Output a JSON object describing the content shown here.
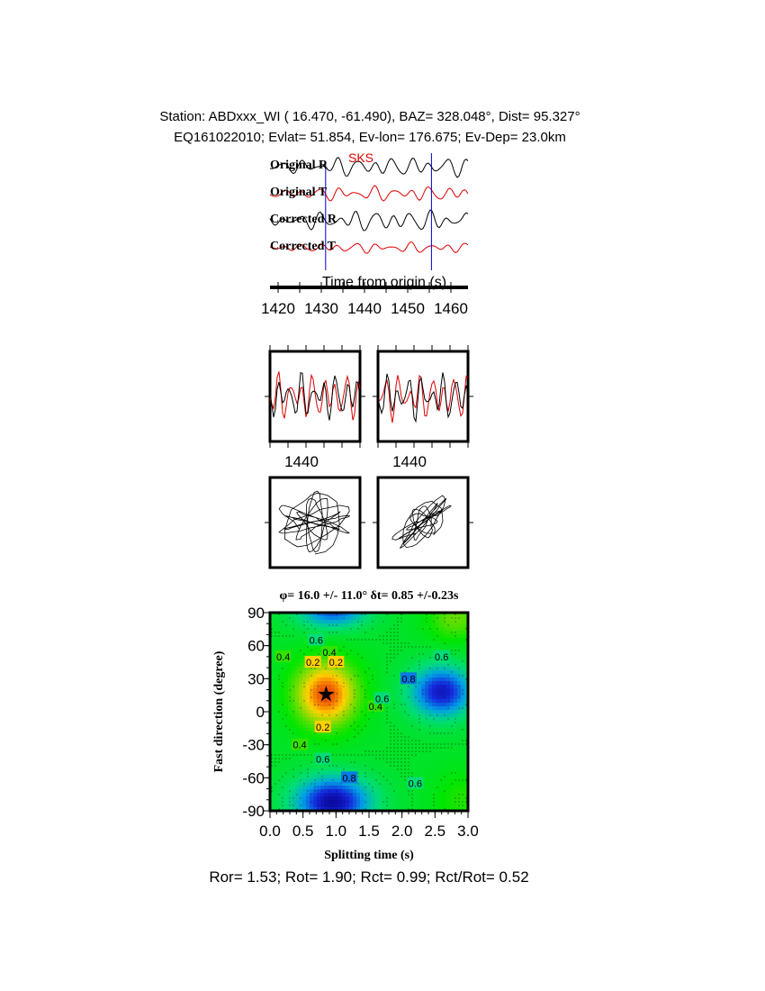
{
  "header": {
    "line1": "Station: ABDxxx_WI (  16.470,  -61.490), BAZ=  328.048°, Dist=   95.327°",
    "line2": "EQ161022010; Evlat=  51.854, Ev-lon= 176.675; Ev-Dep= 23.0km"
  },
  "chart_data": [
    {
      "type": "line",
      "title": "",
      "phase_label": "SKS",
      "series": [
        {
          "name": "Original R"
        },
        {
          "name": "Original T"
        },
        {
          "name": "Corrected R"
        },
        {
          "name": "Corrected T"
        }
      ],
      "window_markers": [
        1431,
        1455.5
      ],
      "xlabel": "Time from origin (s)",
      "xticks": [
        "1420",
        "1430",
        "1440",
        "1450",
        "1460"
      ],
      "xlim": [
        1418,
        1462
      ],
      "colors": {
        "R": "#000000",
        "T": "#dd0000",
        "marker": "#0000cc"
      }
    },
    {
      "type": "line",
      "xticks": [
        "1440"
      ],
      "panels": 2
    },
    {
      "type": "line",
      "panels": 2,
      "description_kind": "particle-motion"
    },
    {
      "type": "heatmap",
      "title": "φ= 16.0 +/- 11.0° δt= 0.85 +/-0.23s",
      "xlabel": "Splitting time (s)",
      "ylabel": "Fast direction (degree)",
      "xlim": [
        0,
        3
      ],
      "ylim": [
        -90,
        90
      ],
      "xticks": [
        "0.0",
        "0.5",
        "1.0",
        "1.5",
        "2.0",
        "2.5",
        "3.0"
      ],
      "yticks": [
        "90",
        "60",
        "30",
        "0",
        "-30",
        "-60",
        "-90"
      ],
      "best_fit": {
        "dt": 0.85,
        "phi": 16.0
      },
      "contour_labels": [
        {
          "text": "0.6",
          "x": 0.7,
          "y": 65
        },
        {
          "text": "0.4",
          "x": 0.9,
          "y": 54
        },
        {
          "text": "0.2",
          "x": 0.65,
          "y": 45
        },
        {
          "text": "0.2",
          "x": 1.0,
          "y": 45
        },
        {
          "text": "0.4",
          "x": 0.2,
          "y": 50
        },
        {
          "text": "0.2",
          "x": 0.8,
          "y": -14
        },
        {
          "text": "0.4",
          "x": 0.45,
          "y": -30
        },
        {
          "text": "0.6",
          "x": 0.8,
          "y": -43
        },
        {
          "text": "0.8",
          "x": 1.2,
          "y": -60
        },
        {
          "text": "0.4",
          "x": 1.6,
          "y": 5
        },
        {
          "text": "0.6",
          "x": 1.7,
          "y": 12
        },
        {
          "text": "0.8",
          "x": 2.1,
          "y": 30
        },
        {
          "text": "0.6",
          "x": 2.6,
          "y": 50
        },
        {
          "text": "0.6",
          "x": 2.2,
          "y": -65
        }
      ]
    }
  ],
  "footer": {
    "text": "Ror= 1.53; Rot= 1.90; Rct= 0.99; Rct/Rot= 0.52"
  }
}
